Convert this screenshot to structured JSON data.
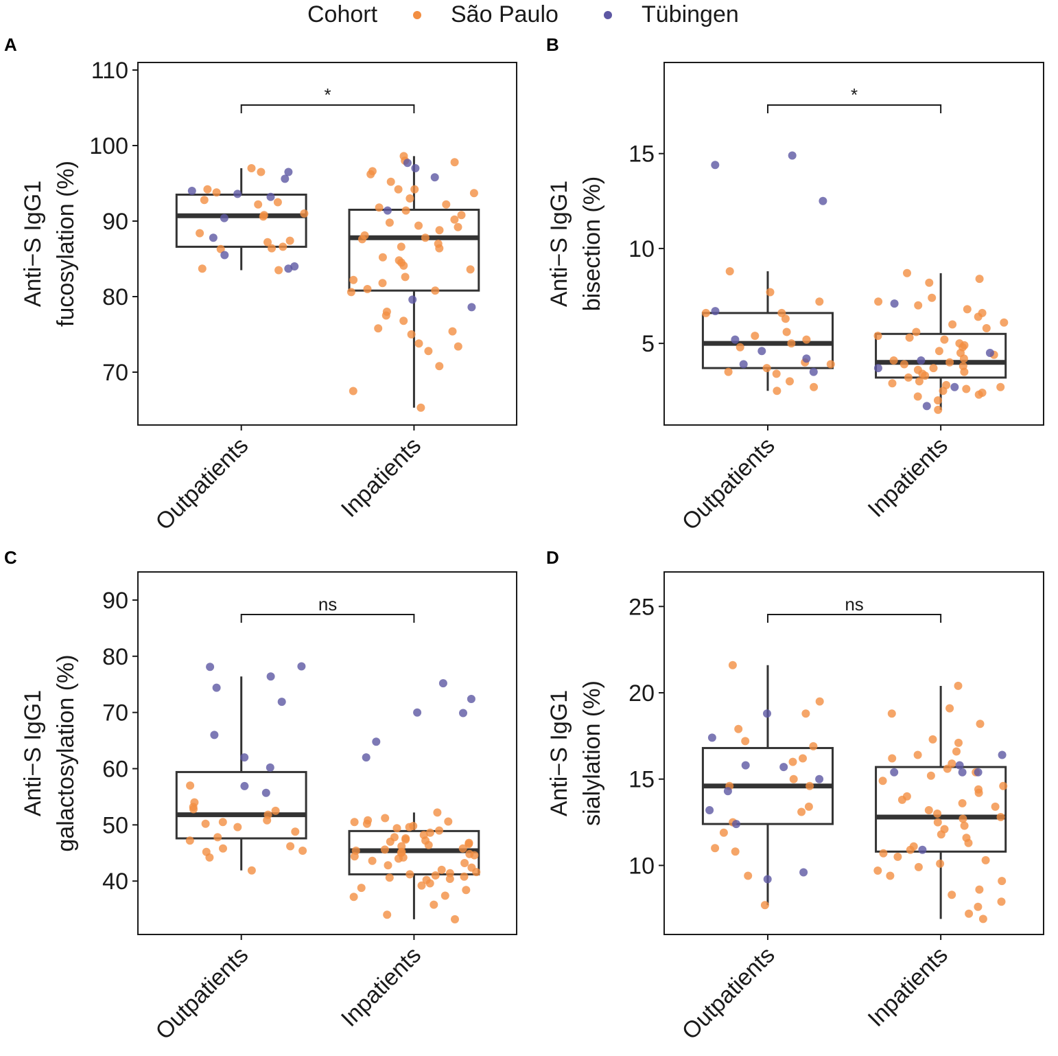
{
  "legend": {
    "title": "Cohort",
    "entries": [
      {
        "label": "São Paulo",
        "color": "#f28e42"
      },
      {
        "label": "Tübingen",
        "color": "#5d57a3"
      }
    ]
  },
  "chart_data": [
    {
      "panel": "A",
      "type": "boxplot",
      "ylabel_line1": "Anti−S IgG1",
      "ylabel_line2": "fucosylation (%)",
      "categories": [
        "Outpatients",
        "Inpatients"
      ],
      "ylim": [
        63,
        111
      ],
      "yticks": [
        70,
        80,
        90,
        100,
        110
      ],
      "significance": "*",
      "boxes": [
        {
          "q1": 86.6,
          "median": 90.7,
          "q3": 93.5,
          "whisker_low": 83.5,
          "whisker_high": 97.0
        },
        {
          "q1": 80.8,
          "median": 87.8,
          "q3": 91.5,
          "whisker_low": 65.3,
          "whisker_high": 98.6
        }
      ],
      "points": {
        "Outpatients": {
          "São Paulo": [
            96.5,
            93.8,
            92.2,
            91.0,
            90.8,
            90.6,
            88.4,
            87.4,
            87.2,
            86.6,
            86.4,
            86.3,
            83.5,
            83.7,
            97.0,
            94.2,
            92.8,
            92.5
          ],
          "Tübingen": [
            96.5,
            95.6,
            94.0,
            93.6,
            93.2,
            90.4,
            87.8,
            85.5,
            84.0,
            83.7
          ]
        },
        "Inpatients": {
          "São Paulo": [
            98.6,
            98.0,
            97.8,
            96.6,
            96.2,
            95.2,
            94.2,
            94.2,
            93.7,
            93.0,
            92.2,
            91.8,
            91.4,
            90.8,
            90.2,
            89.8,
            89.4,
            89.2,
            88.8,
            88.1,
            87.8,
            87.6,
            87.0,
            86.6,
            86.4,
            85.2,
            84.8,
            84.5,
            84.1,
            83.6,
            82.6,
            82.2,
            81.8,
            81.0,
            80.8,
            80.6,
            78.0,
            77.5,
            76.8,
            75.8,
            75.4,
            75.0,
            73.8,
            73.4,
            72.8,
            70.8,
            67.5,
            65.3
          ],
          "Tübingen": [
            97.7,
            97.0,
            95.8,
            91.4,
            79.6,
            78.6
          ]
        }
      }
    },
    {
      "panel": "B",
      "type": "boxplot",
      "ylabel_line1": "Anti−S IgG1",
      "ylabel_line2": "bisection (%)",
      "categories": [
        "Outpatients",
        "Inpatients"
      ],
      "ylim": [
        0.7,
        19.8
      ],
      "yticks": [
        5,
        10,
        15
      ],
      "significance": "*",
      "boxes": [
        {
          "q1": 3.7,
          "median": 5.0,
          "q3": 6.6,
          "whisker_low": 2.5,
          "whisker_high": 8.8
        },
        {
          "q1": 3.2,
          "median": 4.0,
          "q3": 5.5,
          "whisker_low": 1.5,
          "whisker_high": 8.7
        }
      ],
      "points": {
        "Outpatients": {
          "São Paulo": [
            8.8,
            7.7,
            7.2,
            6.6,
            6.6,
            6.3,
            5.6,
            5.4,
            5.2,
            5.0,
            4.8,
            4.0,
            3.9,
            3.7,
            3.5,
            3.4,
            3.0,
            2.7,
            2.5
          ],
          "Tübingen": [
            14.9,
            14.4,
            12.5,
            6.7,
            5.2,
            4.6,
            4.2,
            3.9,
            3.5
          ]
        },
        "Inpatients": {
          "São Paulo": [
            8.7,
            8.4,
            8.2,
            7.4,
            7.2,
            7.0,
            6.8,
            6.6,
            6.4,
            6.1,
            6.0,
            5.8,
            5.6,
            5.4,
            5.3,
            5.2,
            5.0,
            4.9,
            4.8,
            4.6,
            4.5,
            4.4,
            4.2,
            4.1,
            4.0,
            3.9,
            3.8,
            3.7,
            3.6,
            3.5,
            3.4,
            3.3,
            3.2,
            3.0,
            2.9,
            2.8,
            2.7,
            2.6,
            2.5,
            2.4,
            2.3,
            2.2,
            2.0,
            1.5
          ],
          "Tübingen": [
            7.1,
            4.5,
            4.1,
            3.7,
            2.7,
            1.7
          ]
        }
      }
    },
    {
      "panel": "C",
      "type": "boxplot",
      "ylabel_line1": "Anti−S IgG1",
      "ylabel_line2": "galactosylation (%)",
      "categories": [
        "Outpatients",
        "Inpatients"
      ],
      "ylim": [
        30.5,
        95
      ],
      "yticks": [
        40,
        50,
        60,
        70,
        80,
        90
      ],
      "significance": "ns",
      "boxes": [
        {
          "q1": 47.6,
          "median": 51.8,
          "q3": 59.4,
          "whisker_low": 41.9,
          "whisker_high": 76.4
        },
        {
          "q1": 41.2,
          "median": 45.4,
          "q3": 48.9,
          "whisker_low": 33.2,
          "whisker_high": 52.2
        }
      ],
      "points": {
        "Outpatients": {
          "São Paulo": [
            57.0,
            54.0,
            53.2,
            52.8,
            52.5,
            51.8,
            50.8,
            50.5,
            50.2,
            49.6,
            48.8,
            47.8,
            47.2,
            46.2,
            45.8,
            45.4,
            45.2,
            44.2,
            41.9
          ],
          "Tübingen": [
            78.2,
            78.1,
            76.4,
            74.4,
            71.9,
            66.0,
            62.0,
            60.2,
            56.9,
            55.7
          ]
        },
        "Inpatients": {
          "São Paulo": [
            52.2,
            51.2,
            50.8,
            50.6,
            50.5,
            50.2,
            49.8,
            49.6,
            49.4,
            49.0,
            48.6,
            48.2,
            47.8,
            47.6,
            47.4,
            47.2,
            47.0,
            46.8,
            46.6,
            46.4,
            46.2,
            45.8,
            45.6,
            45.4,
            45.2,
            45.0,
            44.8,
            44.6,
            44.4,
            44.2,
            44.0,
            43.6,
            43.2,
            42.8,
            42.4,
            42.0,
            41.6,
            41.4,
            41.2,
            41.0,
            40.8,
            40.6,
            40.4,
            40.2,
            39.6,
            39.2,
            38.8,
            38.4,
            37.4,
            37.2,
            35.8,
            34.0,
            33.2
          ],
          "Tübingen": [
            75.2,
            72.4,
            70.0,
            69.9,
            64.8,
            62.0
          ]
        }
      }
    },
    {
      "panel": "D",
      "type": "boxplot",
      "ylabel_line1": "Anti−S IgG1",
      "ylabel_line2": "sialylation (%)",
      "categories": [
        "Outpatients",
        "Inpatients"
      ],
      "ylim": [
        6.0,
        27.0
      ],
      "yticks": [
        10,
        15,
        20,
        25
      ],
      "significance": "ns",
      "boxes": [
        {
          "q1": 12.4,
          "median": 14.6,
          "q3": 16.8,
          "whisker_low": 7.7,
          "whisker_high": 21.6
        },
        {
          "q1": 10.8,
          "median": 12.8,
          "q3": 15.7,
          "whisker_low": 6.9,
          "whisker_high": 20.4
        }
      ],
      "points": {
        "Outpatients": {
          "São Paulo": [
            21.6,
            19.5,
            18.8,
            17.9,
            17.2,
            16.9,
            16.2,
            16.0,
            15.0,
            14.6,
            14.6,
            13.4,
            13.1,
            12.5,
            11.9,
            11.0,
            10.8,
            9.4,
            7.7
          ],
          "Tübingen": [
            18.8,
            17.4,
            15.8,
            15.7,
            15.0,
            14.3,
            13.2,
            12.4,
            9.6,
            9.2
          ]
        },
        "Inpatients": {
          "São Paulo": [
            20.4,
            19.1,
            18.8,
            18.2,
            17.3,
            17.1,
            16.6,
            16.4,
            16.2,
            15.9,
            15.6,
            15.4,
            15.2,
            14.9,
            14.6,
            14.4,
            14.2,
            14.0,
            13.8,
            13.6,
            13.4,
            13.2,
            13.0,
            12.8,
            12.7,
            12.5,
            12.3,
            12.1,
            11.8,
            11.6,
            11.3,
            11.1,
            10.9,
            10.7,
            10.5,
            10.3,
            10.1,
            9.9,
            9.7,
            9.4,
            9.1,
            8.6,
            8.3,
            7.9,
            7.6,
            7.2,
            6.9
          ],
          "Tübingen": [
            16.4,
            15.8,
            15.4,
            15.4,
            15.4,
            10.9
          ]
        }
      }
    }
  ]
}
